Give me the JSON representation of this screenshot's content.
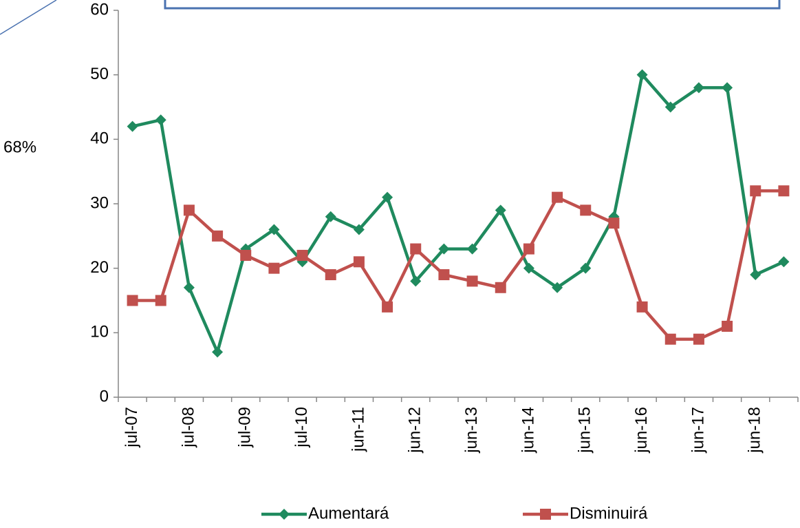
{
  "chart_data": {
    "type": "line",
    "annotations": [
      "68%"
    ],
    "categories": [
      "jul-07",
      null,
      "jul-08",
      null,
      "jul-09",
      null,
      "jul-10",
      null,
      "jun-11",
      null,
      "jun-12",
      null,
      "jun-13",
      null,
      "jun-14",
      null,
      "jun-15",
      null,
      "jun-16",
      null,
      "jun-17",
      null,
      "jun-18",
      null
    ],
    "series": [
      {
        "name": "Aumentará",
        "color": "#1f8a5e",
        "marker": "diamond",
        "values": [
          42,
          43,
          17,
          7,
          23,
          26,
          21,
          28,
          26,
          31,
          18,
          23,
          23,
          29,
          20,
          17,
          20,
          28,
          50,
          45,
          48,
          48,
          19,
          21
        ]
      },
      {
        "name": "Disminuirá",
        "color": "#c0504d",
        "marker": "square",
        "values": [
          15,
          15,
          29,
          25,
          22,
          20,
          22,
          19,
          21,
          14,
          23,
          19,
          18,
          17,
          23,
          31,
          29,
          27,
          14,
          9,
          9,
          11,
          32,
          32
        ]
      }
    ],
    "ylim": [
      0,
      60
    ],
    "yticks": [
      0,
      10,
      20,
      30,
      40,
      50,
      60
    ],
    "grid": false,
    "legend": "bottom"
  }
}
